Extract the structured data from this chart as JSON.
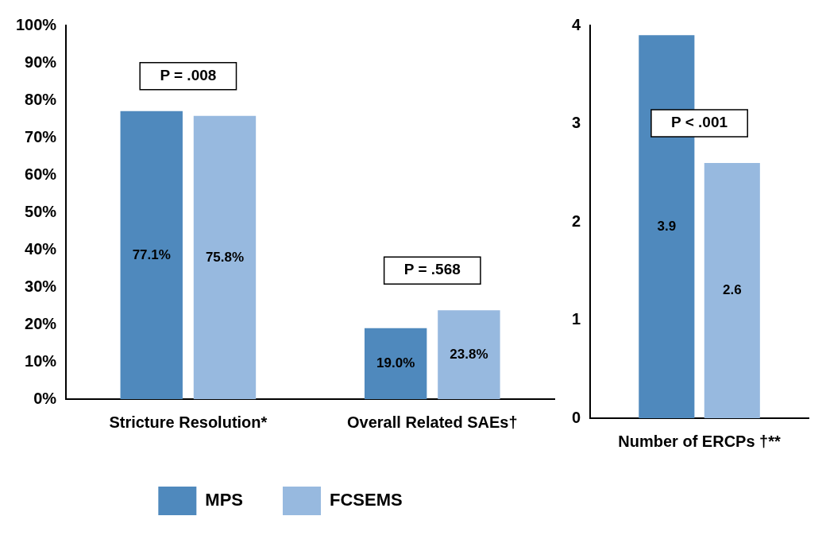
{
  "chart_data": [
    {
      "type": "bar",
      "categories": [
        "Stricture Resolution*",
        "Overall Related SAEs†"
      ],
      "series": [
        {
          "name": "MPS",
          "color": "#4f89bd",
          "values": [
            77.1,
            19.0
          ],
          "value_labels": [
            "77.1%",
            "19.0%"
          ]
        },
        {
          "name": "FCSEMS",
          "color": "#97b9df",
          "values": [
            75.8,
            23.8
          ],
          "value_labels": [
            "75.8%",
            "23.8%"
          ]
        }
      ],
      "ylim": [
        0,
        100
      ],
      "yticks": [
        {
          "value": 0,
          "label": "0%"
        },
        {
          "value": 10,
          "label": "10%"
        },
        {
          "value": 20,
          "label": "20%"
        },
        {
          "value": 30,
          "label": "30%"
        },
        {
          "value": 40,
          "label": "40%"
        },
        {
          "value": 50,
          "label": "50%"
        },
        {
          "value": 60,
          "label": "60%"
        },
        {
          "value": 70,
          "label": "70%"
        },
        {
          "value": 80,
          "label": "80%"
        },
        {
          "value": 90,
          "label": "90%"
        },
        {
          "value": 100,
          "label": "100%"
        }
      ],
      "annotations": [
        "P = .008",
        "P = .568"
      ],
      "grid": false,
      "legend": "bottom"
    },
    {
      "type": "bar",
      "categories": [
        "Number of ERCPs †**"
      ],
      "series": [
        {
          "color": "#4f89bd",
          "values": [
            3.9
          ],
          "value_labels": [
            "3.9"
          ]
        },
        {
          "color": "#97b9df",
          "values": [
            2.6
          ],
          "value_labels": [
            "2.6"
          ]
        }
      ],
      "ylim": [
        0,
        4
      ],
      "yticks": [
        0,
        1,
        2,
        3,
        4
      ],
      "annotations": [
        "P < .001"
      ],
      "grid": false
    }
  ]
}
